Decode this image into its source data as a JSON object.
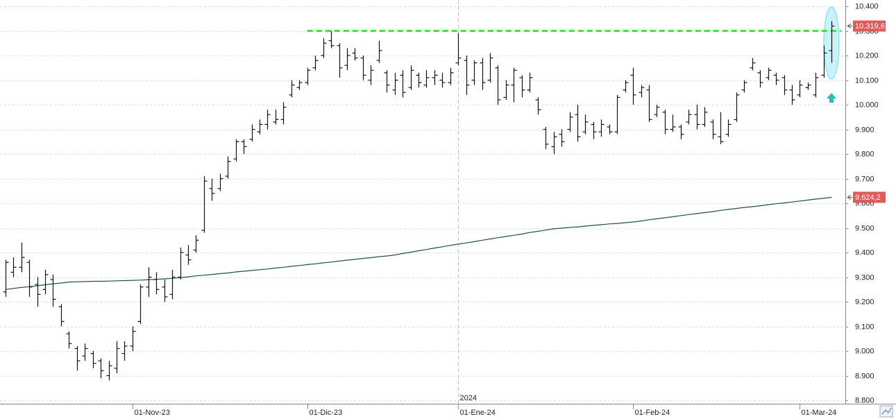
{
  "chart_data": {
    "type": "ohlc",
    "categories": [
      null,
      null,
      null,
      null,
      null,
      null,
      null,
      null,
      null,
      null,
      null,
      null,
      null,
      null,
      null,
      null,
      "01-Nov-23",
      null,
      null,
      null,
      null,
      null,
      null,
      null,
      null,
      null,
      null,
      null,
      null,
      null,
      null,
      null,
      null,
      null,
      null,
      null,
      null,
      null,
      "01-Dic-23",
      null,
      null,
      null,
      null,
      null,
      null,
      null,
      null,
      null,
      null,
      null,
      null,
      null,
      null,
      null,
      null,
      null,
      null,
      "01-Ene-24",
      null,
      null,
      null,
      null,
      null,
      null,
      null,
      null,
      null,
      null,
      null,
      null,
      null,
      null,
      null,
      null,
      null,
      null,
      null,
      null,
      null,
      "01-Feb-24",
      null,
      null,
      null,
      null,
      null,
      null,
      null,
      null,
      null,
      null,
      null,
      null,
      null,
      null,
      null,
      null,
      null,
      null,
      null,
      null,
      "01-Mar-24",
      null,
      null,
      null,
      null
    ],
    "year_label": "2024",
    "ohlc": {
      "color": "#111111",
      "open": [
        9240,
        9320,
        9340,
        9360,
        9270,
        9250,
        9290,
        9180,
        9070,
        9010,
        8980,
        8990,
        8960,
        8900,
        8930,
        8990,
        9020,
        9120,
        9260,
        9290,
        9260,
        9230,
        9300,
        9390,
        9410,
        9490,
        9660,
        9660,
        9710,
        9780,
        9850,
        9860,
        9890,
        9920,
        9930,
        9940,
        10040,
        10070,
        10090,
        10150,
        10200,
        10260,
        10240,
        10160,
        10210,
        10190,
        10100,
        10180,
        10130,
        10060,
        10120,
        10070,
        10120,
        10080,
        10110,
        10100,
        10090,
        10170,
        10180,
        10100,
        10170,
        10100,
        10150,
        10030,
        10080,
        10110,
        10060,
        10020,
        9900,
        9830,
        9880,
        9900,
        9960,
        9890,
        9920,
        9890,
        9910,
        9890,
        10060,
        10120,
        10050,
        10060,
        9960,
        9970,
        9900,
        9910,
        9930,
        9960,
        9920,
        9930,
        9870,
        9880,
        9940,
        10060,
        10150,
        10130,
        10110,
        10120,
        10110,
        10060,
        10040,
        10070,
        10040,
        10120,
        10220
      ],
      "high": [
        9370,
        9380,
        9440,
        9370,
        9300,
        9330,
        9310,
        9190,
        9080,
        9020,
        9030,
        9000,
        8970,
        8960,
        9040,
        9040,
        9100,
        9270,
        9340,
        9320,
        9290,
        9330,
        9420,
        9430,
        9470,
        9710,
        9700,
        9720,
        9790,
        9860,
        9860,
        9920,
        9940,
        9980,
        9980,
        10010,
        10100,
        10100,
        10150,
        10200,
        10270,
        10300,
        10250,
        10230,
        10230,
        10200,
        10160,
        10260,
        10140,
        10130,
        10140,
        10160,
        10130,
        10140,
        10140,
        10130,
        10150,
        10290,
        10200,
        10180,
        10190,
        10210,
        10160,
        10100,
        10150,
        10120,
        10130,
        10030,
        9910,
        9890,
        9900,
        9970,
        10000,
        9960,
        9930,
        9940,
        9920,
        10040,
        10100,
        10150,
        10080,
        10080,
        10000,
        9980,
        9960,
        9920,
        9980,
        10000,
        9990,
        9940,
        9970,
        9940,
        10050,
        10100,
        10190,
        10140,
        10150,
        10130,
        10120,
        10080,
        10100,
        10090,
        10130,
        10240,
        10340
      ],
      "low": [
        9220,
        9300,
        9320,
        9220,
        9180,
        9230,
        9180,
        9100,
        9010,
        8920,
        8960,
        8930,
        8890,
        8880,
        8910,
        8960,
        9000,
        9110,
        9220,
        9230,
        9200,
        9210,
        9290,
        9350,
        9400,
        9480,
        9610,
        9650,
        9700,
        9770,
        9800,
        9850,
        9880,
        9900,
        9920,
        9920,
        10030,
        10060,
        10080,
        10140,
        10190,
        10230,
        10110,
        10140,
        10180,
        10100,
        10080,
        10170,
        10050,
        10040,
        10030,
        10060,
        10070,
        10070,
        10080,
        10070,
        10080,
        10160,
        10040,
        10080,
        10060,
        10090,
        10000,
        10020,
        10010,
        10030,
        10050,
        9960,
        9820,
        9800,
        9830,
        9890,
        9850,
        9880,
        9860,
        9870,
        9880,
        9880,
        10050,
        10000,
        10030,
        9930,
        9950,
        9880,
        9890,
        9860,
        9920,
        9900,
        9910,
        9860,
        9840,
        9870,
        9930,
        10050,
        10140,
        10070,
        10100,
        10080,
        10040,
        10000,
        10030,
        10060,
        10030,
        10110,
        10170
      ],
      "close": [
        9360,
        9340,
        9380,
        9260,
        9230,
        9310,
        9210,
        9120,
        9030,
        8960,
        9010,
        8950,
        8920,
        8940,
        9010,
        9020,
        9080,
        9260,
        9300,
        9250,
        9220,
        9300,
        9400,
        9370,
        9450,
        9690,
        9640,
        9700,
        9770,
        9850,
        9830,
        9900,
        9920,
        9960,
        9940,
        9990,
        10080,
        10090,
        10140,
        10180,
        10250,
        10240,
        10150,
        10200,
        10190,
        10120,
        10140,
        10220,
        10080,
        10100,
        10050,
        10140,
        10090,
        10110,
        10120,
        10090,
        10130,
        10190,
        10080,
        10170,
        10090,
        10190,
        10020,
        10080,
        10140,
        10060,
        10110,
        9980,
        9840,
        9870,
        9850,
        9950,
        9870,
        9930,
        9890,
        9920,
        9890,
        10030,
        10090,
        10040,
        10070,
        9940,
        9990,
        9900,
        9910,
        9880,
        9960,
        9920,
        9970,
        9880,
        9850,
        9920,
        10040,
        10090,
        10170,
        10090,
        10140,
        10100,
        10060,
        10020,
        10080,
        10080,
        10110,
        10210,
        10319.6
      ]
    },
    "ma": {
      "color": "#1f4d5c",
      "values": [
        9250,
        9254,
        9258,
        9261,
        9265,
        9269,
        9273,
        9276,
        9280,
        9281,
        9282,
        9283,
        9283,
        9284,
        9285,
        9286,
        9287,
        9288,
        9290,
        9291,
        9293,
        9295,
        9298,
        9301,
        9305,
        9308,
        9311,
        9314,
        9317,
        9321,
        9324,
        9327,
        9330,
        9333,
        9337,
        9340,
        9344,
        9347,
        9351,
        9354,
        9358,
        9361,
        9365,
        9369,
        9372,
        9376,
        9379,
        9383,
        9386,
        9390,
        9396,
        9401,
        9407,
        9412,
        9418,
        9423,
        9429,
        9434,
        9439,
        9444,
        9450,
        9455,
        9460,
        9465,
        9470,
        9475,
        9481,
        9486,
        9491,
        9496,
        9499,
        9502,
        9504,
        9507,
        9510,
        9513,
        9516,
        9518,
        9521,
        9524,
        9528,
        9533,
        9537,
        9541,
        9545,
        9550,
        9554,
        9558,
        9562,
        9566,
        9571,
        9575,
        9579,
        9583,
        9586,
        9590,
        9594,
        9598,
        9601,
        9605,
        9609,
        9613,
        9617,
        9620,
        9624.2
      ]
    },
    "price_label": {
      "value": 10319.6,
      "label": "10.319,6",
      "color": "#e05a5a"
    },
    "ma_label": {
      "value": 9624.2,
      "label": "9.624,2",
      "color": "#e05a5a"
    },
    "resistance": {
      "value": 10300,
      "color": "#22dd22"
    },
    "ylim": [
      8800,
      10400
    ],
    "yticks": [
      {
        "value": 8800,
        "label": "8.800"
      },
      {
        "value": 8900,
        "label": "8.900"
      },
      {
        "value": 9000,
        "label": "9.000"
      },
      {
        "value": 9100,
        "label": "9.100"
      },
      {
        "value": 9200,
        "label": "9.200"
      },
      {
        "value": 9300,
        "label": "9.300"
      },
      {
        "value": 9400,
        "label": "9.400"
      },
      {
        "value": 9500,
        "label": "9.500"
      },
      {
        "value": 9600,
        "label": "9.600"
      },
      {
        "value": 9700,
        "label": "9.700"
      },
      {
        "value": 9800,
        "label": "9.800"
      },
      {
        "value": 9900,
        "label": "9.900"
      },
      {
        "value": 10000,
        "label": "10.000"
      },
      {
        "value": 10100,
        "label": "10.100"
      },
      {
        "value": 10200,
        "label": "10.200"
      },
      {
        "value": 10300,
        "label": "10.300"
      },
      {
        "value": 10400,
        "label": "10.400"
      }
    ],
    "grid": true
  }
}
